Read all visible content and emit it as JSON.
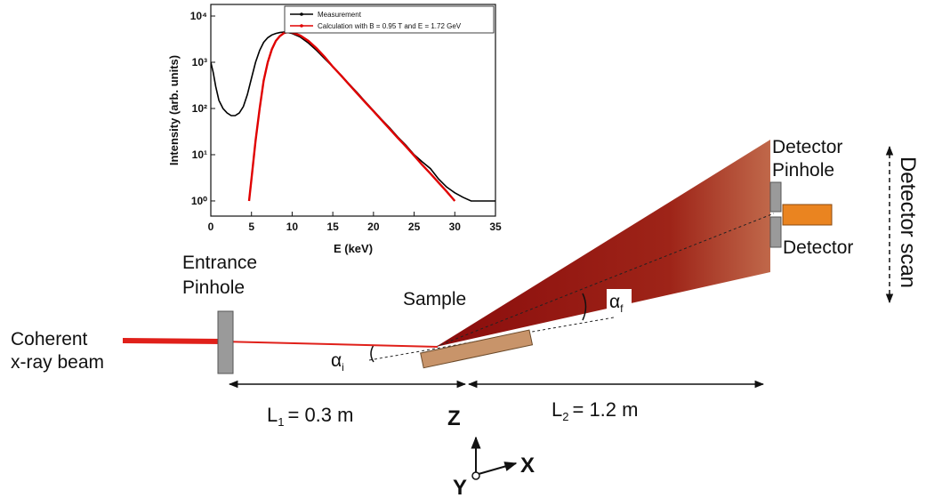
{
  "chart_data": {
    "type": "line",
    "x_label": "E (keV)",
    "y_label": "Intensity (arb. units)",
    "log_y": true,
    "xlim": [
      0,
      35
    ],
    "ylim": [
      0.47,
      17800
    ],
    "xticks": [
      0,
      5,
      10,
      15,
      20,
      25,
      30,
      35
    ],
    "yticks": [
      {
        "value": 1,
        "label": "10⁰"
      },
      {
        "value": 10,
        "label": "10¹"
      },
      {
        "value": 100,
        "label": "10²"
      },
      {
        "value": 1000,
        "label": "10³"
      },
      {
        "value": 10000,
        "label": "10⁴"
      }
    ],
    "series": [
      {
        "name": "Measurement",
        "color": "#000000",
        "x": [
          0,
          0.3,
          0.6,
          1,
          1.5,
          2,
          2.5,
          3,
          3.5,
          4,
          4.5,
          5,
          5.5,
          6,
          6.5,
          7,
          7.5,
          8,
          8.5,
          9,
          9.5,
          10,
          11,
          12,
          13,
          14,
          15,
          16,
          17,
          18,
          19,
          20,
          21,
          22,
          23,
          24,
          25,
          26,
          27,
          28,
          29,
          30,
          31,
          32,
          33,
          34,
          35
        ],
        "values": [
          1000,
          600,
          300,
          150,
          100,
          80,
          70,
          70,
          80,
          110,
          200,
          450,
          1000,
          1800,
          2700,
          3400,
          3900,
          4200,
          4400,
          4500,
          4400,
          4200,
          3500,
          2600,
          1800,
          1200,
          800,
          530,
          340,
          220,
          140,
          90,
          58,
          38,
          24,
          16,
          10,
          7,
          5,
          3,
          2,
          1.5,
          1.2,
          1,
          1,
          1,
          1
        ]
      },
      {
        "name": "Calculation with B = 0.95 T and E = 1.72 GeV",
        "color": "#e00000",
        "x": [
          4.7,
          5,
          5.5,
          6,
          6.5,
          7,
          7.5,
          8,
          8.5,
          9,
          9.5,
          10,
          11,
          12,
          13,
          14,
          15,
          16,
          17,
          18,
          19,
          20,
          21,
          22,
          23,
          24,
          25,
          26,
          27,
          28,
          29,
          30
        ],
        "values": [
          1,
          3,
          20,
          100,
          400,
          1000,
          1900,
          2900,
          3700,
          4300,
          4500,
          4400,
          3800,
          2900,
          2000,
          1300,
          800,
          520,
          330,
          210,
          135,
          87,
          56,
          36,
          23,
          15,
          9.5,
          6,
          3.9,
          2.5,
          1.6,
          1
        ]
      }
    ]
  },
  "diagram": {
    "source": {
      "lines": [
        "Coherent",
        "x-ray beam"
      ]
    },
    "entrance_pinhole": {
      "lines": [
        "Entrance",
        "Pinhole"
      ]
    },
    "sample": "Sample",
    "detector_pinhole": {
      "lines": [
        "Detector",
        "Pinhole"
      ]
    },
    "detector": "Detector",
    "detector_scan": "Detector scan",
    "alpha_i": {
      "symbol": "α",
      "subscript": "i"
    },
    "alpha_f": {
      "symbol": "α",
      "subscript": "f"
    },
    "l1": {
      "symbol": "L",
      "subscript": "1",
      "text": "= 0.3 m"
    },
    "l2": {
      "symbol": "L",
      "subscript": "2",
      "text": "= 1.2 m"
    },
    "axes": {
      "z": "Z",
      "x": "X",
      "y": "Y"
    }
  }
}
